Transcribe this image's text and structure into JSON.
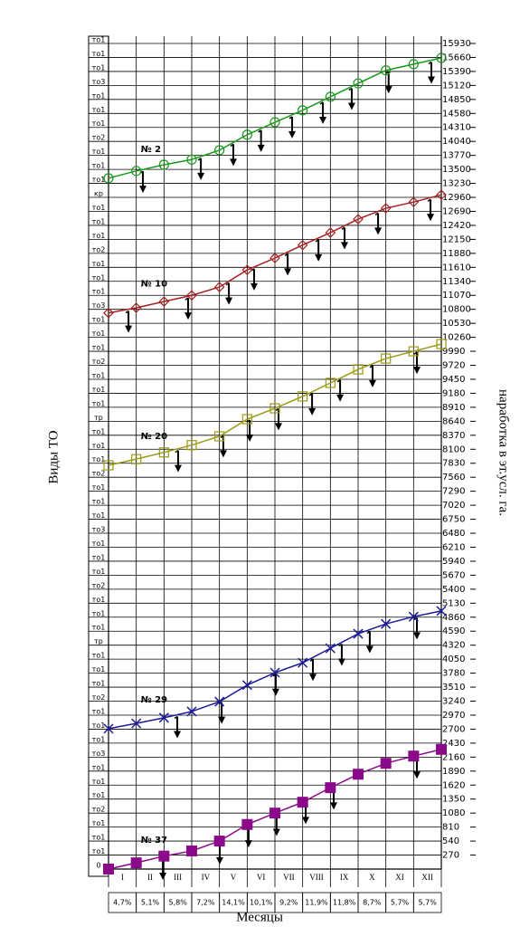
{
  "chart_data": {
    "type": "line",
    "y_label": "Виды ТО",
    "y2_label": "наработка в эт.усл. га.",
    "x_label": "Месяцы",
    "x": [
      0,
      1,
      2,
      3,
      4,
      5,
      6,
      7,
      8,
      9,
      10,
      11,
      12
    ],
    "xlim": [
      0,
      12
    ],
    "months": [
      "I",
      "II",
      "III",
      "IV",
      "V",
      "VI",
      "VII",
      "VIII",
      "IX",
      "X",
      "XI",
      "XII"
    ],
    "shares": [
      "4,7%",
      "5,1%",
      "5,8%",
      "7,2%",
      "14,1%",
      "10,1%",
      "9,2%",
      "11,9%",
      "11,8%",
      "8,7%",
      "5,7%",
      "5,7%"
    ],
    "ylim": [
      0,
      15930
    ],
    "yticks": [
      270,
      540,
      810,
      1080,
      1350,
      1620,
      1890,
      2160,
      2430,
      2700,
      2970,
      3240,
      3510,
      3780,
      4050,
      4320,
      4590,
      4860,
      5130,
      5400,
      5670,
      5940,
      6210,
      6480,
      6750,
      7020,
      7290,
      7560,
      7830,
      8100,
      8370,
      8640,
      8910,
      9180,
      9450,
      9720,
      9990,
      10260,
      10530,
      10800,
      11070,
      11340,
      11610,
      11880,
      12150,
      12420,
      12690,
      12960,
      13230,
      13500,
      13770,
      14040,
      14310,
      14580,
      14850,
      15120,
      15390,
      15660,
      15930
    ],
    "service_labels": [
      "то1",
      "то1",
      "то1",
      "то3",
      "то1",
      "то1",
      "то1",
      "то2",
      "то1",
      "то1",
      "то1",
      "кр",
      "то1",
      "то1",
      "то1",
      "то2",
      "то1",
      "то1",
      "то1",
      "то3",
      "то1",
      "то1",
      "то1",
      "то2",
      "то1",
      "то1",
      "то1",
      "тр",
      "то1",
      "то1",
      "то1",
      "то2",
      "то1",
      "то1",
      "то1",
      "то3",
      "то1",
      "то1",
      "то1",
      "то2",
      "то1",
      "то1",
      "то1",
      "тр",
      "то1",
      "то1",
      "то1",
      "то2",
      "то1",
      "то1",
      "то1",
      "то3",
      "то1",
      "то1",
      "то1",
      "то2",
      "то1",
      "то1",
      "то1",
      "0"
    ],
    "grid": true,
    "series": [
      {
        "name": "№ 2",
        "color": "#1a9a1a",
        "marker": "circle",
        "values": [
          13330,
          13470,
          13590,
          13690,
          13870,
          14170,
          14410,
          14640,
          14900,
          15160,
          15410,
          15530,
          15650
        ],
        "arrows": [
          1.24,
          3.33,
          4.5,
          5.5,
          6.62,
          7.73,
          8.77,
          10.1,
          11.64
        ]
      },
      {
        "name": "№ 10",
        "color": "#a52020",
        "marker": "diamond",
        "values": [
          10730,
          10830,
          10950,
          11070,
          11230,
          11560,
          11790,
          12040,
          12280,
          12540,
          12750,
          12870,
          13010
        ],
        "arrows": [
          0.72,
          2.87,
          4.34,
          5.25,
          6.46,
          7.57,
          8.51,
          9.72,
          11.61
        ]
      },
      {
        "name": "№ 20",
        "color": "#9a9a10",
        "marker": "square",
        "values": [
          7790,
          7910,
          8040,
          8180,
          8350,
          8680,
          8890,
          9120,
          9380,
          9640,
          9850,
          9990,
          10130
        ],
        "arrows": [
          2.51,
          4.14,
          5.09,
          6.13,
          7.34,
          8.35,
          9.52,
          11.12
        ]
      },
      {
        "name": "№ 29",
        "color": "#1a1a9a",
        "marker": "x",
        "values": [
          2710,
          2810,
          2920,
          3040,
          3230,
          3550,
          3790,
          3980,
          4260,
          4540,
          4730,
          4870,
          4980
        ],
        "arrows": [
          2.48,
          4.08,
          6.03,
          7.37,
          8.41,
          9.42,
          11.12
        ]
      },
      {
        "name": "№ 37",
        "color": "#8a0a8a",
        "marker": "filled-square",
        "values": [
          0,
          120,
          250,
          350,
          540,
          860,
          1080,
          1290,
          1570,
          1830,
          2040,
          2180,
          2310
        ],
        "arrows": [
          1.96,
          4.01,
          5.05,
          6.06,
          7.11,
          8.12,
          11.12
        ]
      }
    ]
  }
}
